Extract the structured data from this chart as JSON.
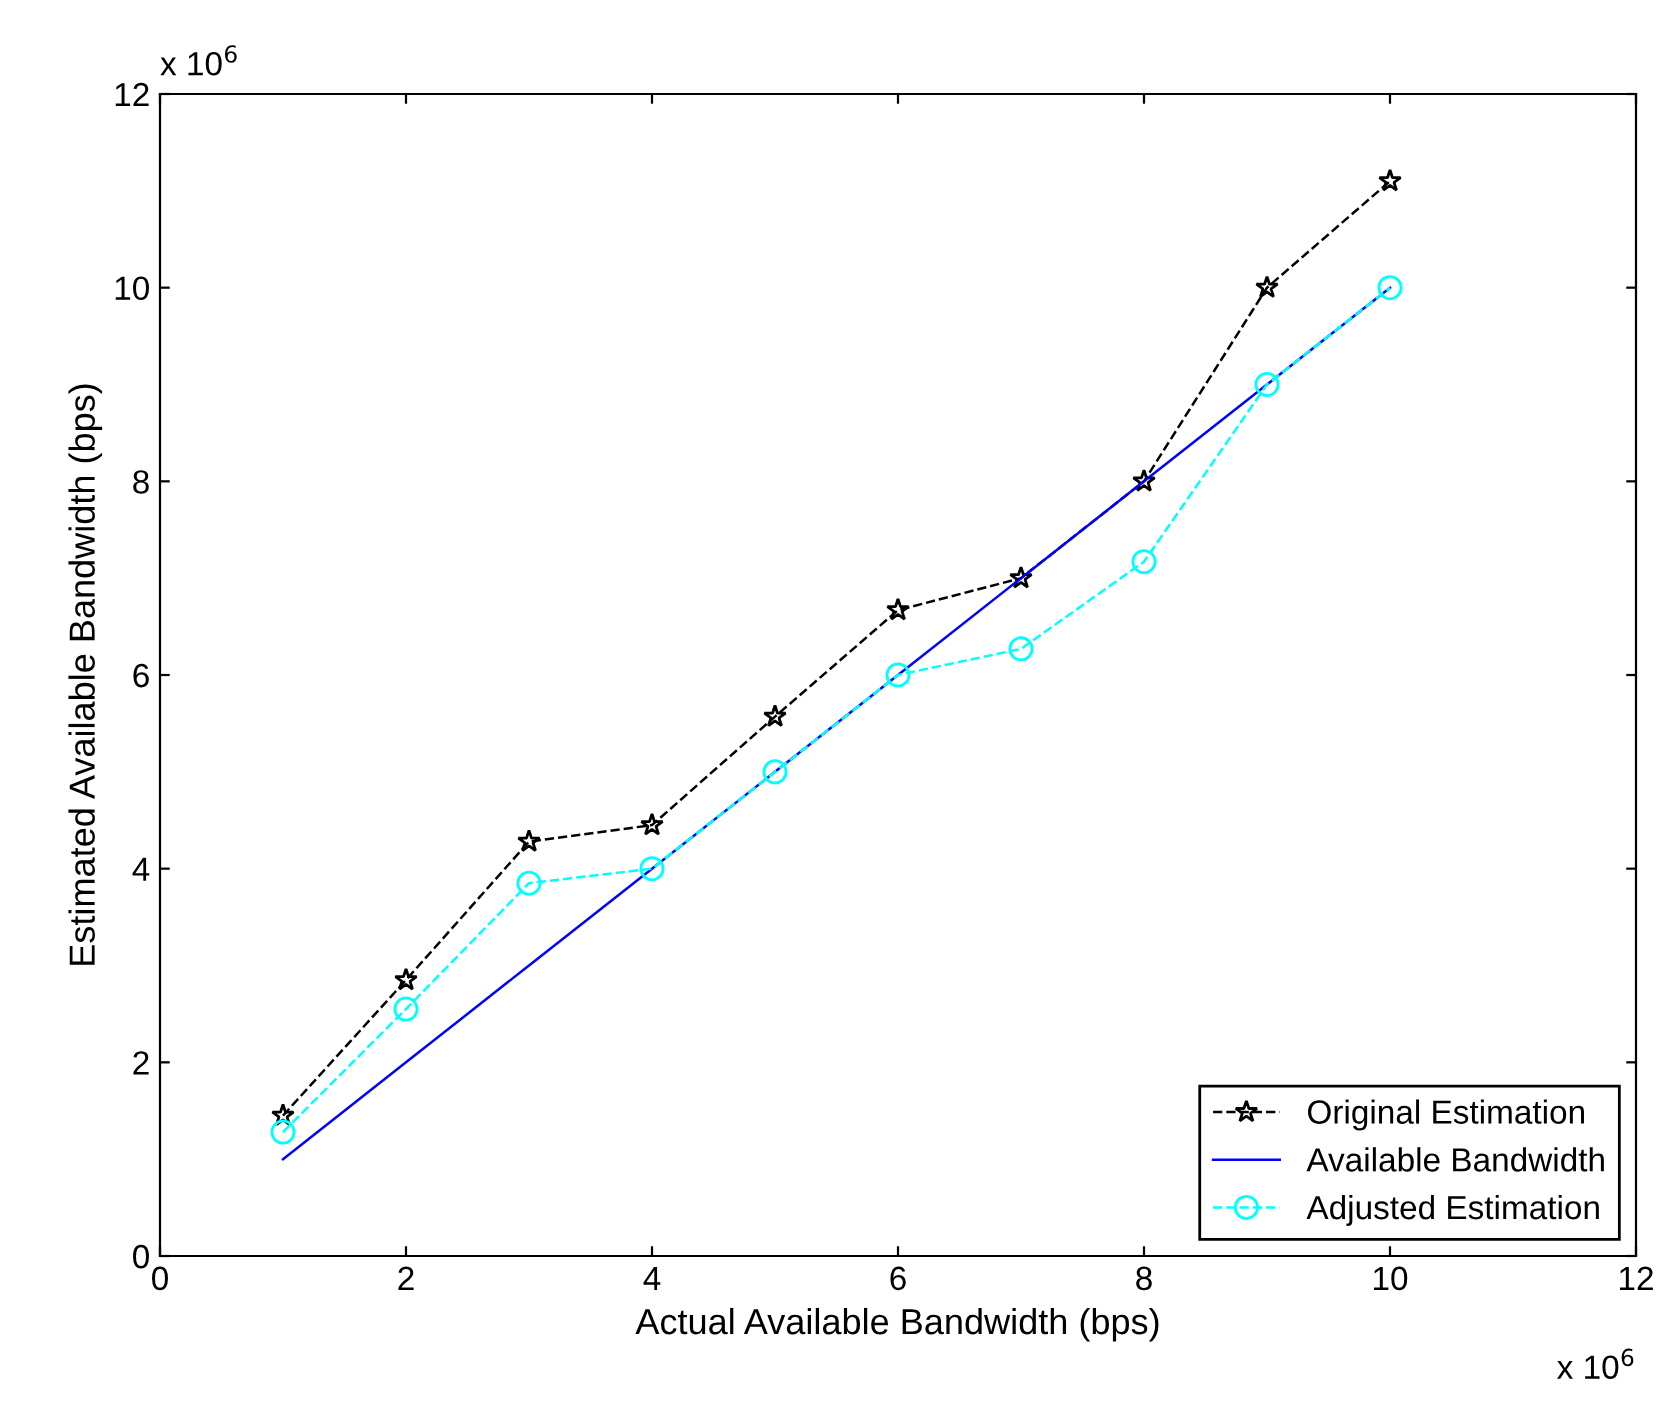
{
  "chart_data": {
    "type": "line",
    "xlabel": "Actual Available Bandwidth (bps)",
    "ylabel": "Estimated Available Bandwidth (bps)",
    "x": [
      1,
      2,
      3,
      4,
      5,
      6,
      7,
      8,
      9,
      10
    ],
    "series": [
      {
        "name": "Original Estimation",
        "color": "#000000",
        "marker": "star",
        "line_style": "dashed",
        "values": [
          1.45,
          2.85,
          4.28,
          4.45,
          5.57,
          6.67,
          7.0,
          8.0,
          10.0,
          11.1
        ]
      },
      {
        "name": "Available Bandwidth",
        "color": "#0000ff",
        "marker": "none",
        "line_style": "solid",
        "values": [
          1,
          2,
          3,
          4,
          5,
          6,
          7,
          8,
          9,
          10
        ]
      },
      {
        "name": "Adjusted Estimation",
        "color": "#00ffff",
        "marker": "circle",
        "line_style": "dashed",
        "values": [
          1.28,
          2.55,
          3.85,
          4.0,
          5.0,
          6.0,
          6.27,
          7.17,
          9.0,
          10.0
        ]
      }
    ],
    "xlim": [
      0,
      12
    ],
    "ylim": [
      0,
      12
    ],
    "xticks": [
      0,
      2,
      4,
      6,
      8,
      10,
      12
    ],
    "yticks": [
      0,
      2,
      4,
      6,
      8,
      10,
      12
    ],
    "annotations": [
      "x 10$^{6}$",
      "x 10$^{6}$"
    ],
    "grid": false,
    "legend": "bottom right"
  }
}
